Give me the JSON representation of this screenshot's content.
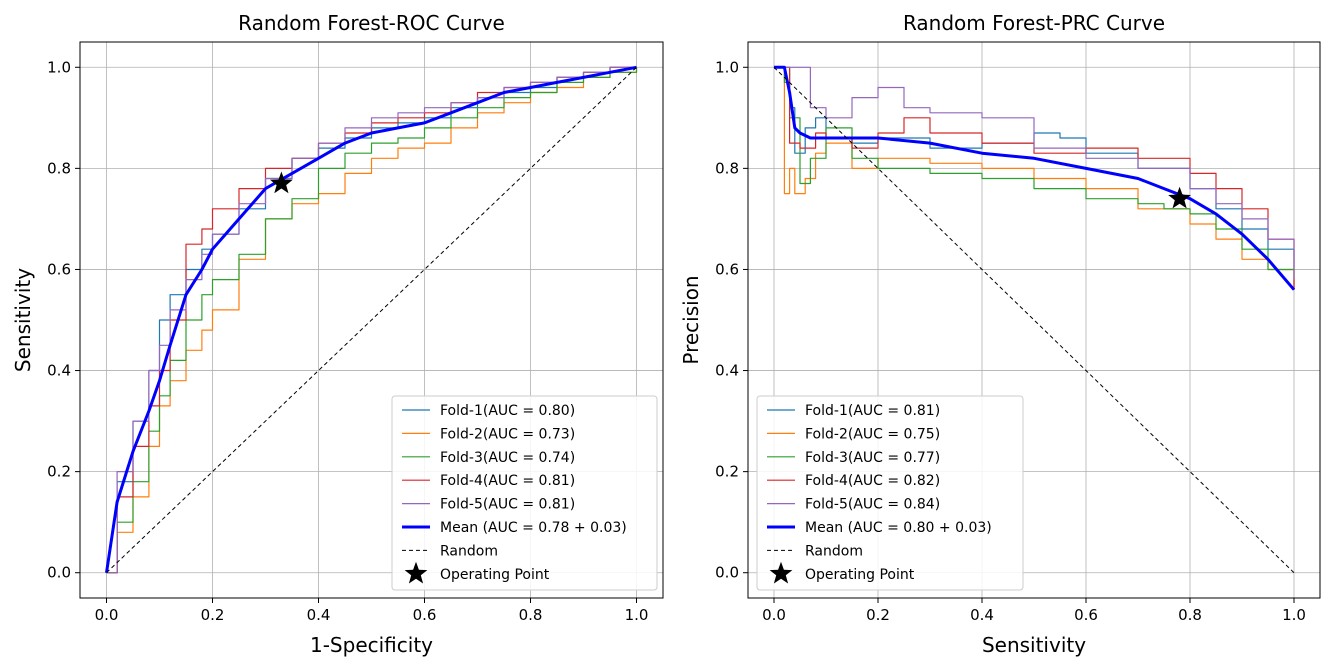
{
  "chart_data": [
    {
      "type": "line",
      "title": "Random Forest-ROC Curve",
      "xlabel": "1-Specificity",
      "ylabel": "Sensitivity",
      "xlim": [
        -0.05,
        1.05
      ],
      "ylim": [
        -0.05,
        1.05
      ],
      "xticks": [
        "0.0",
        "0.2",
        "0.4",
        "0.6",
        "0.8",
        "1.0"
      ],
      "yticks": [
        "0.0",
        "0.2",
        "0.4",
        "0.6",
        "0.8",
        "1.0"
      ],
      "grid": true,
      "legend_position": "lower-right",
      "series": [
        {
          "name": "Fold-1(AUC = 0.80)",
          "color": "#1f77b4",
          "step": true,
          "width": 1.2,
          "x": [
            0,
            0.02,
            0.05,
            0.08,
            0.1,
            0.12,
            0.15,
            0.18,
            0.2,
            0.25,
            0.3,
            0.35,
            0.4,
            0.45,
            0.5,
            0.55,
            0.6,
            0.65,
            0.7,
            0.75,
            0.8,
            0.85,
            0.9,
            0.95,
            1.0
          ],
          "y": [
            0,
            0.18,
            0.3,
            0.4,
            0.5,
            0.55,
            0.6,
            0.64,
            0.67,
            0.72,
            0.78,
            0.82,
            0.84,
            0.86,
            0.88,
            0.89,
            0.9,
            0.92,
            0.94,
            0.95,
            0.96,
            0.98,
            0.99,
            1.0,
            1.0
          ]
        },
        {
          "name": "Fold-2(AUC = 0.73)",
          "color": "#ff7f0e",
          "step": true,
          "width": 1.2,
          "x": [
            0,
            0.02,
            0.05,
            0.08,
            0.1,
            0.12,
            0.15,
            0.18,
            0.2,
            0.25,
            0.3,
            0.35,
            0.4,
            0.45,
            0.5,
            0.55,
            0.6,
            0.65,
            0.7,
            0.75,
            0.8,
            0.85,
            0.9,
            0.95,
            1.0
          ],
          "y": [
            0,
            0.08,
            0.15,
            0.25,
            0.33,
            0.38,
            0.44,
            0.48,
            0.52,
            0.62,
            0.7,
            0.73,
            0.75,
            0.79,
            0.82,
            0.84,
            0.85,
            0.88,
            0.91,
            0.93,
            0.95,
            0.96,
            0.98,
            0.99,
            1.0
          ]
        },
        {
          "name": "Fold-3(AUC = 0.74)",
          "color": "#2ca02c",
          "step": true,
          "width": 1.2,
          "x": [
            0,
            0.02,
            0.05,
            0.08,
            0.1,
            0.12,
            0.15,
            0.18,
            0.2,
            0.25,
            0.3,
            0.35,
            0.4,
            0.45,
            0.5,
            0.55,
            0.6,
            0.65,
            0.7,
            0.75,
            0.8,
            0.85,
            0.9,
            0.95,
            1.0
          ],
          "y": [
            0,
            0.1,
            0.18,
            0.28,
            0.35,
            0.42,
            0.5,
            0.55,
            0.58,
            0.63,
            0.7,
            0.74,
            0.8,
            0.83,
            0.85,
            0.86,
            0.88,
            0.9,
            0.92,
            0.94,
            0.95,
            0.97,
            0.98,
            0.99,
            1.0
          ]
        },
        {
          "name": "Fold-4(AUC = 0.81)",
          "color": "#d62728",
          "step": true,
          "width": 1.2,
          "x": [
            0,
            0.02,
            0.05,
            0.08,
            0.1,
            0.12,
            0.15,
            0.18,
            0.2,
            0.25,
            0.3,
            0.35,
            0.4,
            0.45,
            0.5,
            0.55,
            0.6,
            0.65,
            0.7,
            0.75,
            0.8,
            0.85,
            0.9,
            0.95,
            1.0
          ],
          "y": [
            0,
            0.15,
            0.25,
            0.33,
            0.4,
            0.5,
            0.65,
            0.68,
            0.72,
            0.76,
            0.8,
            0.82,
            0.85,
            0.87,
            0.89,
            0.9,
            0.91,
            0.93,
            0.95,
            0.96,
            0.97,
            0.98,
            0.99,
            1.0,
            1.0
          ]
        },
        {
          "name": "Fold-5(AUC = 0.81)",
          "color": "#9467bd",
          "step": true,
          "width": 1.2,
          "x": [
            0,
            0.02,
            0.05,
            0.08,
            0.1,
            0.12,
            0.15,
            0.18,
            0.2,
            0.25,
            0.3,
            0.35,
            0.4,
            0.45,
            0.5,
            0.55,
            0.6,
            0.65,
            0.7,
            0.75,
            0.8,
            0.85,
            0.9,
            0.95,
            1.0
          ],
          "y": [
            0,
            0.2,
            0.3,
            0.4,
            0.45,
            0.52,
            0.58,
            0.63,
            0.67,
            0.73,
            0.78,
            0.82,
            0.85,
            0.88,
            0.9,
            0.91,
            0.92,
            0.93,
            0.94,
            0.96,
            0.97,
            0.98,
            0.99,
            1.0,
            1.0
          ]
        },
        {
          "name": "Mean (AUC = 0.78 + 0.03)",
          "color": "#0000ff",
          "step": false,
          "width": 3,
          "x": [
            0,
            0.02,
            0.05,
            0.08,
            0.1,
            0.12,
            0.15,
            0.18,
            0.2,
            0.25,
            0.3,
            0.35,
            0.4,
            0.45,
            0.5,
            0.55,
            0.6,
            0.65,
            0.7,
            0.75,
            0.8,
            0.85,
            0.9,
            0.95,
            1.0
          ],
          "y": [
            0,
            0.14,
            0.24,
            0.32,
            0.38,
            0.45,
            0.55,
            0.6,
            0.64,
            0.7,
            0.76,
            0.79,
            0.82,
            0.85,
            0.87,
            0.88,
            0.89,
            0.91,
            0.93,
            0.95,
            0.96,
            0.97,
            0.98,
            0.99,
            1.0
          ]
        },
        {
          "name": "Random",
          "color": "#000000",
          "dash": true,
          "step": false,
          "width": 1,
          "x": [
            0,
            1
          ],
          "y": [
            0,
            1
          ]
        }
      ],
      "operating_point": {
        "name": "Operating Point",
        "x": 0.33,
        "y": 0.77
      }
    },
    {
      "type": "line",
      "title": "Random Forest-PRC Curve",
      "xlabel": "Sensitivity",
      "ylabel": "Precision",
      "xlim": [
        -0.05,
        1.05
      ],
      "ylim": [
        -0.05,
        1.05
      ],
      "xticks": [
        "0.0",
        "0.2",
        "0.4",
        "0.6",
        "0.8",
        "1.0"
      ],
      "yticks": [
        "0.0",
        "0.2",
        "0.4",
        "0.6",
        "0.8",
        "1.0"
      ],
      "grid": true,
      "legend_position": "lower-left",
      "series": [
        {
          "name": "Fold-1(AUC = 0.81)",
          "color": "#1f77b4",
          "step": true,
          "width": 1.2,
          "x": [
            0,
            0.01,
            0.02,
            0.03,
            0.04,
            0.06,
            0.08,
            0.1,
            0.15,
            0.2,
            0.3,
            0.4,
            0.5,
            0.55,
            0.6,
            0.7,
            0.8,
            0.85,
            0.9,
            0.95,
            1.0
          ],
          "y": [
            1.0,
            1.0,
            1.0,
            0.92,
            0.83,
            0.88,
            0.9,
            0.86,
            0.85,
            0.86,
            0.84,
            0.85,
            0.87,
            0.86,
            0.83,
            0.8,
            0.76,
            0.72,
            0.68,
            0.64,
            0.6
          ]
        },
        {
          "name": "Fold-2(AUC = 0.75)",
          "color": "#ff7f0e",
          "step": true,
          "width": 1.2,
          "x": [
            0,
            0.01,
            0.02,
            0.03,
            0.04,
            0.06,
            0.08,
            0.1,
            0.15,
            0.2,
            0.3,
            0.4,
            0.5,
            0.6,
            0.7,
            0.8,
            0.85,
            0.9,
            0.95,
            1.0
          ],
          "y": [
            1.0,
            1.0,
            0.75,
            0.8,
            0.75,
            0.78,
            0.83,
            0.85,
            0.8,
            0.82,
            0.81,
            0.8,
            0.78,
            0.76,
            0.72,
            0.69,
            0.66,
            0.62,
            0.6,
            0.57
          ]
        },
        {
          "name": "Fold-3(AUC = 0.77)",
          "color": "#2ca02c",
          "step": true,
          "width": 1.2,
          "x": [
            0,
            0.01,
            0.02,
            0.03,
            0.05,
            0.07,
            0.1,
            0.15,
            0.2,
            0.3,
            0.4,
            0.5,
            0.6,
            0.7,
            0.75,
            0.8,
            0.85,
            0.9,
            0.95,
            1.0
          ],
          "y": [
            1.0,
            1.0,
            0.97,
            0.9,
            0.77,
            0.82,
            0.88,
            0.82,
            0.8,
            0.79,
            0.78,
            0.76,
            0.74,
            0.73,
            0.72,
            0.71,
            0.68,
            0.64,
            0.6,
            0.56
          ]
        },
        {
          "name": "Fold-4(AUC = 0.82)",
          "color": "#d62728",
          "step": true,
          "width": 1.2,
          "x": [
            0,
            0.01,
            0.02,
            0.03,
            0.05,
            0.08,
            0.1,
            0.15,
            0.2,
            0.25,
            0.3,
            0.4,
            0.5,
            0.6,
            0.7,
            0.8,
            0.85,
            0.9,
            0.95,
            1.0
          ],
          "y": [
            1.0,
            1.0,
            1.0,
            0.85,
            0.84,
            0.87,
            0.86,
            0.84,
            0.87,
            0.9,
            0.87,
            0.85,
            0.83,
            0.84,
            0.82,
            0.79,
            0.76,
            0.72,
            0.66,
            0.56
          ]
        },
        {
          "name": "Fold-5(AUC = 0.84)",
          "color": "#9467bd",
          "step": true,
          "width": 1.2,
          "x": [
            0,
            0.01,
            0.02,
            0.03,
            0.05,
            0.07,
            0.1,
            0.15,
            0.2,
            0.25,
            0.3,
            0.4,
            0.5,
            0.6,
            0.7,
            0.8,
            0.85,
            0.9,
            0.95,
            1.0
          ],
          "y": [
            1.0,
            1.0,
            1.0,
            1.0,
            1.0,
            0.92,
            0.9,
            0.94,
            0.96,
            0.92,
            0.91,
            0.9,
            0.84,
            0.82,
            0.8,
            0.76,
            0.73,
            0.7,
            0.66,
            0.58
          ]
        },
        {
          "name": "Mean (AUC = 0.80 + 0.03)",
          "color": "#0000ff",
          "step": false,
          "width": 3,
          "x": [
            0,
            0.01,
            0.02,
            0.03,
            0.04,
            0.05,
            0.07,
            0.1,
            0.15,
            0.2,
            0.3,
            0.4,
            0.5,
            0.6,
            0.7,
            0.75,
            0.8,
            0.85,
            0.9,
            0.95,
            1.0
          ],
          "y": [
            1.0,
            1.0,
            1.0,
            0.95,
            0.88,
            0.87,
            0.86,
            0.86,
            0.86,
            0.86,
            0.85,
            0.83,
            0.82,
            0.8,
            0.78,
            0.76,
            0.74,
            0.71,
            0.67,
            0.62,
            0.56
          ]
        },
        {
          "name": "Random",
          "color": "#000000",
          "dash": true,
          "step": false,
          "width": 1,
          "x": [
            0,
            1
          ],
          "y": [
            1,
            0
          ]
        }
      ],
      "operating_point": {
        "name": "Operating Point",
        "x": 0.78,
        "y": 0.74
      }
    }
  ]
}
